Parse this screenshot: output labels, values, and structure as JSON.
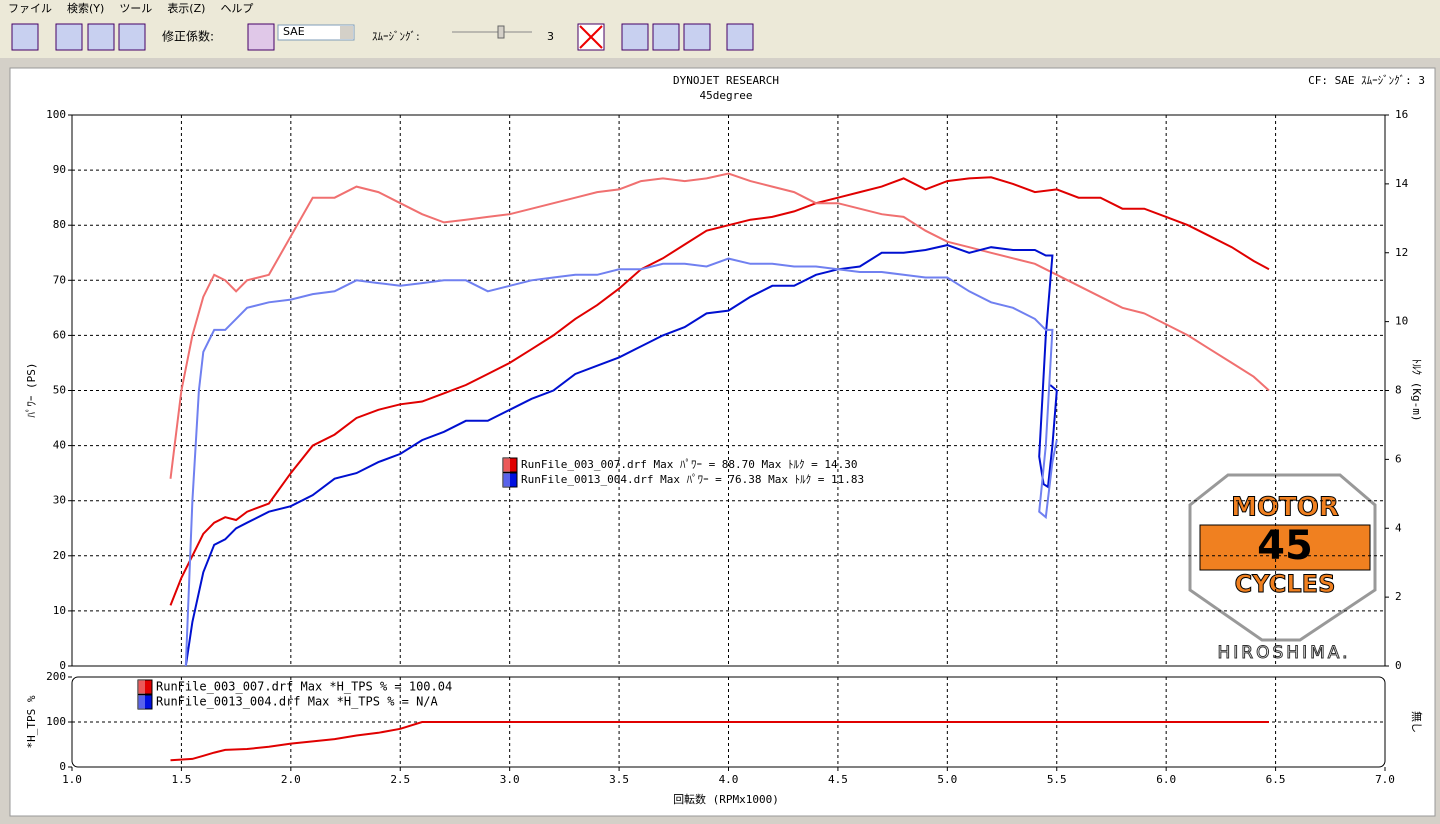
{
  "menu": [
    "ファイル",
    "検索(Y)",
    "ツール",
    "表示(Z)",
    "ヘルプ"
  ],
  "toolbar": {
    "factor_label": "修正係数:",
    "factor_value": "SAE",
    "smoothing_label": "ｽﾑｰｼﾞﾝｸﾞ:",
    "smoothing_value": "3"
  },
  "logo": {
    "top": "MOTOR",
    "middle": "45",
    "bottom": "CYCLES",
    "city": "HIROSHIMA."
  },
  "chart_data": [
    {
      "type": "line",
      "title": "DYNOJET  RESEARCH",
      "subtitle": "45degree",
      "corner_note": "CF: SAE  ｽﾑｰｼﾞﾝｸﾞ: 3",
      "ylabel": "ﾊﾟﾜｰ (PS)",
      "y2label": "ﾄﾙｸ (Kg-m)",
      "xlim": [
        1,
        7
      ],
      "ylim": [
        0,
        100
      ],
      "yticks": [
        0,
        10,
        20,
        30,
        40,
        50,
        60,
        70,
        80,
        90,
        100
      ],
      "y2lim": [
        0,
        16
      ],
      "y2ticks": [
        0,
        2,
        4,
        6,
        8,
        10,
        12,
        14,
        16
      ],
      "grid": true,
      "legend": [
        {
          "label": "RunFile_003_007.drf Max ﾊﾟﾜｰ = 88.70   Max ﾄﾙｸ = 14.30",
          "color": "#e00000"
        },
        {
          "label": "RunFile_0013_004.drf Max ﾊﾟﾜｰ = 76.38   Max ﾄﾙｸ = 11.83",
          "color": "#0010e0"
        }
      ],
      "series": [
        {
          "color": "#e00000",
          "x": [
            1.45,
            1.5,
            1.55,
            1.6,
            1.65,
            1.7,
            1.75,
            1.8,
            1.9,
            2.0,
            2.1,
            2.2,
            2.3,
            2.4,
            2.5,
            2.6,
            2.7,
            2.8,
            2.9,
            3.0,
            3.1,
            3.2,
            3.3,
            3.4,
            3.5,
            3.6,
            3.7,
            3.8,
            3.9,
            4.0,
            4.1,
            4.2,
            4.3,
            4.4,
            4.5,
            4.6,
            4.7,
            4.8,
            4.9,
            5.0,
            5.1,
            5.2,
            5.3,
            5.4,
            5.5,
            5.6,
            5.7,
            5.8,
            5.9,
            6.0,
            6.1,
            6.2,
            6.3,
            6.4,
            6.47
          ],
          "values": [
            11,
            16,
            20,
            24,
            26,
            27,
            26.5,
            28,
            29.5,
            35,
            40,
            42,
            45,
            46.5,
            47.5,
            48,
            49.5,
            51,
            53,
            55,
            57.5,
            60,
            63,
            65.5,
            68.5,
            72,
            74,
            76.5,
            79,
            80,
            81,
            81.5,
            82.5,
            84,
            85,
            86,
            87,
            88.5,
            86.5,
            88,
            88.5,
            88.7,
            87.5,
            86,
            86.5,
            85,
            85,
            83,
            83,
            81.5,
            80,
            78,
            76,
            73.5,
            72
          ]
        },
        {
          "color": "#f07070",
          "axis": "y2",
          "x": [
            1.45,
            1.5,
            1.55,
            1.6,
            1.65,
            1.7,
            1.75,
            1.8,
            1.9,
            2.0,
            2.1,
            2.2,
            2.3,
            2.4,
            2.5,
            2.6,
            2.7,
            2.8,
            2.9,
            3.0,
            3.1,
            3.2,
            3.3,
            3.4,
            3.5,
            3.6,
            3.7,
            3.8,
            3.9,
            4.0,
            4.1,
            4.2,
            4.3,
            4.4,
            4.5,
            4.6,
            4.7,
            4.8,
            4.9,
            5.0,
            5.1,
            5.2,
            5.3,
            5.4,
            5.5,
            5.6,
            5.7,
            5.8,
            5.9,
            6.0,
            6.1,
            6.2,
            6.3,
            6.4,
            6.47
          ],
          "values": [
            5.44,
            8.0,
            9.6,
            10.72,
            11.36,
            11.2,
            10.88,
            11.2,
            11.36,
            12.48,
            13.6,
            13.6,
            13.92,
            13.76,
            13.44,
            13.12,
            12.88,
            12.96,
            13.04,
            13.12,
            13.28,
            13.44,
            13.6,
            13.76,
            13.84,
            14.08,
            14.16,
            14.08,
            14.16,
            14.3,
            14.08,
            13.92,
            13.76,
            13.44,
            13.44,
            13.28,
            13.12,
            13.04,
            12.64,
            12.32,
            12.16,
            12.0,
            11.84,
            11.68,
            11.36,
            11.04,
            10.72,
            10.4,
            10.24,
            9.92,
            9.6,
            9.2,
            8.8,
            8.4,
            8.0
          ]
        },
        {
          "color": "#0010d0",
          "x": [
            1.52,
            1.55,
            1.6,
            1.65,
            1.7,
            1.75,
            1.8,
            1.9,
            2.0,
            2.1,
            2.2,
            2.3,
            2.4,
            2.5,
            2.6,
            2.7,
            2.8,
            2.9,
            3.0,
            3.1,
            3.2,
            3.3,
            3.4,
            3.5,
            3.6,
            3.7,
            3.8,
            3.9,
            4.0,
            4.1,
            4.2,
            4.3,
            4.4,
            4.5,
            4.6,
            4.7,
            4.8,
            4.9,
            5.0,
            5.1,
            5.2,
            5.3,
            5.4,
            5.45,
            5.48,
            5.45,
            5.42,
            5.44,
            5.46,
            5.48,
            5.5,
            5.47
          ],
          "values": [
            0,
            8,
            17,
            22,
            23,
            25,
            26,
            28,
            29,
            31,
            34,
            35,
            37,
            38.5,
            41,
            42.5,
            44.5,
            44.5,
            46.5,
            48.5,
            50,
            53,
            54.5,
            56,
            58,
            60,
            61.5,
            64,
            64.5,
            67,
            69,
            69,
            71,
            72,
            72.5,
            75,
            75,
            75.5,
            76.38,
            75,
            76,
            75.5,
            75.5,
            74.5,
            74.5,
            60,
            38,
            33,
            32.5,
            40,
            50,
            51
          ]
        },
        {
          "color": "#7080f0",
          "axis": "y2",
          "x": [
            1.52,
            1.55,
            1.58,
            1.6,
            1.65,
            1.7,
            1.75,
            1.8,
            1.9,
            2.0,
            2.1,
            2.2,
            2.3,
            2.4,
            2.5,
            2.6,
            2.7,
            2.8,
            2.9,
            3.0,
            3.1,
            3.2,
            3.3,
            3.4,
            3.5,
            3.6,
            3.7,
            3.8,
            3.9,
            4.0,
            4.1,
            4.2,
            4.3,
            4.4,
            4.5,
            4.6,
            4.7,
            4.8,
            4.9,
            5.0,
            5.1,
            5.2,
            5.3,
            5.4,
            5.45,
            5.48,
            5.45,
            5.42,
            5.45,
            5.48,
            5.5
          ],
          "values": [
            0,
            4.8,
            8.0,
            9.12,
            9.76,
            9.76,
            10.08,
            10.4,
            10.56,
            10.64,
            10.8,
            10.88,
            11.2,
            11.12,
            11.04,
            11.12,
            11.2,
            11.2,
            10.88,
            11.04,
            11.2,
            11.28,
            11.36,
            11.36,
            11.52,
            11.52,
            11.68,
            11.68,
            11.6,
            11.83,
            11.68,
            11.68,
            11.6,
            11.6,
            11.52,
            11.44,
            11.44,
            11.36,
            11.28,
            11.28,
            10.88,
            10.56,
            10.4,
            10.08,
            9.76,
            9.76,
            6.4,
            4.48,
            4.32,
            5.92,
            6.56
          ]
        }
      ]
    },
    {
      "type": "line",
      "ylabel": "*H_TPS %",
      "y2label": "無し",
      "xlabel": "回転数 (RPMx1000)",
      "xlim": [
        1,
        7
      ],
      "xticks": [
        {
          "value": 1,
          "label": "1.0"
        },
        1.5,
        {
          "value": 2,
          "label": "2.0"
        },
        2.5,
        {
          "value": 3,
          "label": "3.0"
        },
        3.5,
        {
          "value": 4,
          "label": "4.0"
        },
        4.5,
        {
          "value": 5,
          "label": "5.0"
        },
        5.5,
        {
          "value": 6,
          "label": "6.0"
        },
        6.5,
        {
          "value": 7,
          "label": "7.0"
        }
      ],
      "ylim": [
        0,
        200
      ],
      "yticks": [
        0,
        100,
        200
      ],
      "legend": [
        {
          "label": "RunFile_003_007.drf Max *H_TPS % = 100.04",
          "color": "#e00000"
        },
        {
          "label": "RunFile_0013_004.drf Max *H_TPS % = N/A",
          "color": "#0010e0"
        }
      ],
      "series": [
        {
          "color": "#e00000",
          "x": [
            1.45,
            1.55,
            1.6,
            1.65,
            1.7,
            1.8,
            1.9,
            2.0,
            2.1,
            2.2,
            2.3,
            2.4,
            2.5,
            2.6,
            3.0,
            4.0,
            5.0,
            6.0,
            6.47
          ],
          "values": [
            15,
            18,
            25,
            32,
            38,
            40,
            45,
            52,
            57,
            62,
            70,
            76,
            85,
            100,
            100,
            100,
            100,
            100,
            100
          ]
        }
      ]
    }
  ]
}
